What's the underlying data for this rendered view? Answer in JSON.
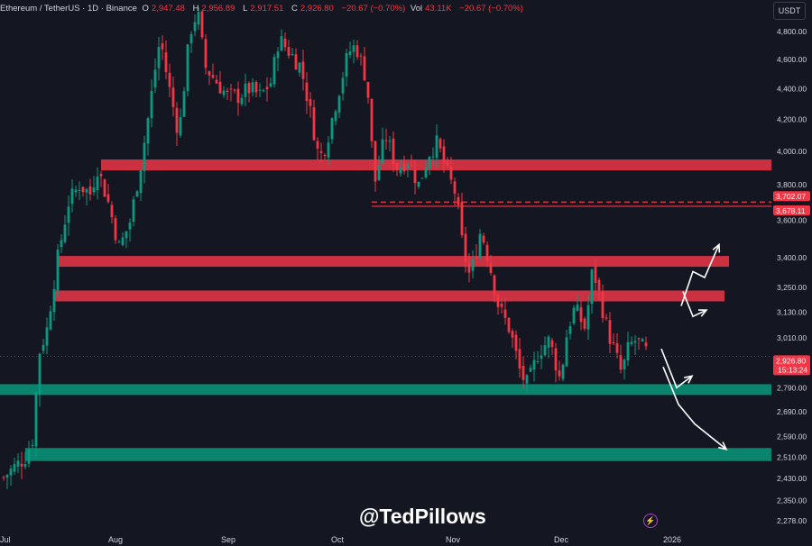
{
  "header": {
    "symbol": "Ethereum / TetherUS · 1D · Binance",
    "open_label": "O",
    "open": "2,947.48",
    "high_label": "H",
    "high": "2,956.89",
    "low_label": "L",
    "low": "2,917.51",
    "close_label": "C",
    "close": "2,926.80",
    "change": "−20.67 (−0.70%)",
    "vol_label": "Vol",
    "vol": "43.11K",
    "change2": "−20.67 (−0.70%)"
  },
  "currency": "USDT",
  "watermark": "@TedPillows",
  "icons": [
    "lightning-icon"
  ],
  "colors": {
    "background": "#141722",
    "bull": "#089981",
    "bear": "#f23645",
    "resistance_zone": "#d63344",
    "support_zone": "#0b8a72",
    "arrow": "#ffffff"
  },
  "chart_data": {
    "type": "candlestick",
    "title": "Ethereum / TetherUS · 1D · Binance",
    "x_axis": {
      "labels": [
        "Jul",
        "Aug",
        "Sep",
        "Oct",
        "Nov",
        "Dec",
        "2026"
      ]
    },
    "y_axis": {
      "scale": "log",
      "ticks": [
        4800,
        4600,
        4400,
        4200,
        4000,
        3800,
        3600,
        3400,
        3250,
        3130,
        3010,
        2790,
        2690,
        2590,
        2510,
        2430,
        2350,
        2278
      ],
      "tick_labels": [
        "4,800.00",
        "4,600.00",
        "4,400.00",
        "4,200.00",
        "4,000.00",
        "3,800.00",
        "3,600.00",
        "3,400.00",
        "3,250.00",
        "3,130.00",
        "3,010.00",
        "2,790.00",
        "2,690.00",
        "2,590.00",
        "2,510.00",
        "2,430.00",
        "2,350.00",
        "2,278.00"
      ],
      "range": [
        2260,
        4980
      ]
    },
    "price_markers": [
      {
        "value": 3702.07,
        "label": "3,702.07"
      },
      {
        "value": 3678.11,
        "label": "3,678.11"
      },
      {
        "value": 2926.8,
        "label": "2,926.80",
        "sub": "15:13:24"
      }
    ],
    "zones": [
      {
        "kind": "resistance",
        "from": 3885,
        "to": 3950,
        "start": "Aug"
      },
      {
        "kind": "resistance",
        "from": 3355,
        "to": 3410,
        "start": "Jul"
      },
      {
        "kind": "resistance",
        "from": 3190,
        "to": 3235,
        "start": "Jul"
      },
      {
        "kind": "support",
        "from": 2765,
        "to": 2805,
        "start": "Jul"
      },
      {
        "kind": "support",
        "from": 2495,
        "to": 2545,
        "start": "Jul"
      }
    ],
    "level_lines": [
      {
        "value": 3702.07,
        "style": "dashed",
        "start": "Oct"
      },
      {
        "value": 3678.11,
        "style": "solid",
        "start": "Oct"
      }
    ],
    "projection_paths": [
      [
        3160,
        3330,
        3300,
        3470
      ],
      [
        3230,
        3110,
        3140
      ],
      [
        2960,
        2790,
        2840
      ],
      [
        2880,
        2720,
        2640,
        2540
      ]
    ],
    "close_path": [
      {
        "d": "Jul 1",
        "c": 2420
      },
      {
        "d": "Jul 4",
        "c": 2460
      },
      {
        "d": "Jul 8",
        "c": 2510
      },
      {
        "d": "Jul 10",
        "c": 2580
      },
      {
        "d": "Jul 12",
        "c": 2950
      },
      {
        "d": "Jul 14",
        "c": 3050
      },
      {
        "d": "Jul 17",
        "c": 3400
      },
      {
        "d": "Jul 20",
        "c": 3700
      },
      {
        "d": "Jul 23",
        "c": 3800
      },
      {
        "d": "Jul 26",
        "c": 3750
      },
      {
        "d": "Jul 28",
        "c": 3900
      },
      {
        "d": "Jul 31",
        "c": 3700
      },
      {
        "d": "Aug 3",
        "c": 3450
      },
      {
        "d": "Aug 6",
        "c": 3600
      },
      {
        "d": "Aug 9",
        "c": 3950
      },
      {
        "d": "Aug 11",
        "c": 4250
      },
      {
        "d": "Aug 13",
        "c": 4600
      },
      {
        "d": "Aug 14",
        "c": 4750
      },
      {
        "d": "Aug 16",
        "c": 4450
      },
      {
        "d": "Aug 19",
        "c": 4100
      },
      {
        "d": "Aug 22",
        "c": 4800
      },
      {
        "d": "Aug 24",
        "c": 4950
      },
      {
        "d": "Aug 26",
        "c": 4550
      },
      {
        "d": "Aug 29",
        "c": 4450
      },
      {
        "d": "Sep 1",
        "c": 4350
      },
      {
        "d": "Sep 4",
        "c": 4350
      },
      {
        "d": "Sep 7",
        "c": 4400
      },
      {
        "d": "Sep 10",
        "c": 4350
      },
      {
        "d": "Sep 13",
        "c": 4450
      },
      {
        "d": "Sep 15",
        "c": 4750
      },
      {
        "d": "Sep 18",
        "c": 4650
      },
      {
        "d": "Sep 21",
        "c": 4550
      },
      {
        "d": "Sep 24",
        "c": 4200
      },
      {
        "d": "Sep 26",
        "c": 3950
      },
      {
        "d": "Sep 28",
        "c": 4050
      },
      {
        "d": "Oct 1",
        "c": 4350
      },
      {
        "d": "Oct 4",
        "c": 4650
      },
      {
        "d": "Oct 6",
        "c": 4700
      },
      {
        "d": "Oct 9",
        "c": 4450
      },
      {
        "d": "Oct 11",
        "c": 3800
      },
      {
        "d": "Oct 14",
        "c": 4100
      },
      {
        "d": "Oct 17",
        "c": 3900
      },
      {
        "d": "Oct 20",
        "c": 3950
      },
      {
        "d": "Oct 23",
        "c": 3800
      },
      {
        "d": "Oct 26",
        "c": 4000
      },
      {
        "d": "Oct 28",
        "c": 4050
      },
      {
        "d": "Oct 31",
        "c": 3850
      },
      {
        "d": "Nov 2",
        "c": 3750
      },
      {
        "d": "Nov 4",
        "c": 3450
      },
      {
        "d": "Nov 6",
        "c": 3300
      },
      {
        "d": "Nov 9",
        "c": 3550
      },
      {
        "d": "Nov 11",
        "c": 3400
      },
      {
        "d": "Nov 14",
        "c": 3150
      },
      {
        "d": "Nov 17",
        "c": 3050
      },
      {
        "d": "Nov 20",
        "c": 2850
      },
      {
        "d": "Nov 22",
        "c": 2800
      },
      {
        "d": "Nov 25",
        "c": 2950
      },
      {
        "d": "Nov 28",
        "c": 3000
      },
      {
        "d": "Dec 1",
        "c": 2820
      },
      {
        "d": "Dec 3",
        "c": 3050
      },
      {
        "d": "Dec 5",
        "c": 3150
      },
      {
        "d": "Dec 8",
        "c": 3050
      },
      {
        "d": "Dec 10",
        "c": 3350
      },
      {
        "d": "Dec 12",
        "c": 3200
      },
      {
        "d": "Dec 14",
        "c": 3050
      },
      {
        "d": "Dec 16",
        "c": 2950
      },
      {
        "d": "Dec 18",
        "c": 2850
      },
      {
        "d": "Dec 20",
        "c": 2970
      },
      {
        "d": "Dec 22",
        "c": 3000
      },
      {
        "d": "Dec 24",
        "c": 2960
      },
      {
        "d": "Dec 26",
        "c": 2926.8
      }
    ]
  }
}
